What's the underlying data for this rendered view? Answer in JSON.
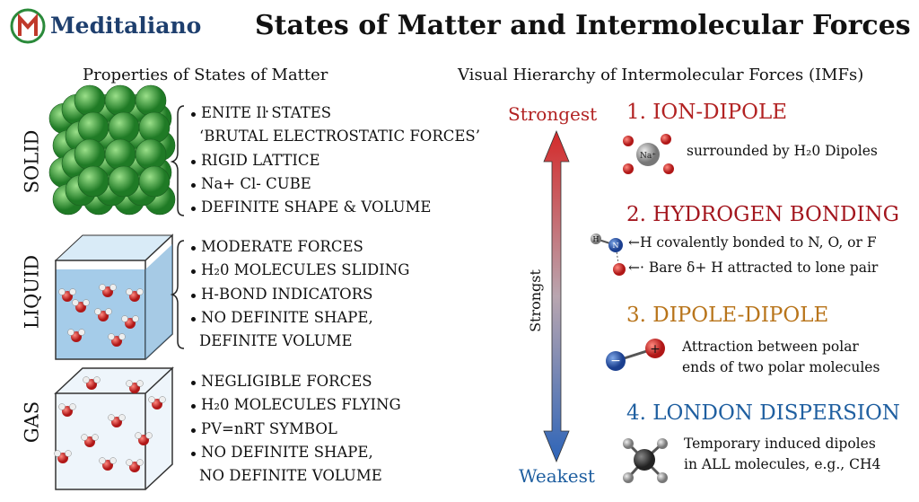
{
  "header": {
    "logo": "Meditaliano",
    "title": "States of Matter and Intermolecular Forces"
  },
  "states": {
    "heading": "Properties of States of Matter",
    "items": [
      {
        "label": "SOLID",
        "bullets": [
          [
            "ENITE Iŀ STATES",
            "‘BRUTAL ELECTROSTATIC FORCES’"
          ],
          [
            "RIGID LATTICE"
          ],
          [
            "Na+ Cl- CUBE"
          ],
          [
            "DEFINITE SHAPE & VOLUME"
          ]
        ]
      },
      {
        "label": "LIQUID",
        "bullets": [
          [
            "MODERATE FORCES"
          ],
          [
            "H₂0 MOLECULES SLIDING"
          ],
          [
            "H-BOND INDICATORS"
          ],
          [
            "NO DEFINITE SHAPE,",
            "DEFINITE VOLUME"
          ]
        ]
      },
      {
        "label": "GAS",
        "bullets": [
          [
            "NEGLIGIBLE FORCES"
          ],
          [
            "H₂0 MOLECULES FLYING"
          ],
          [
            "PV=nRT SYMBOL"
          ],
          [
            "NO DEFINITE SHAPE,",
            "NO DEFINITE VOLUME"
          ]
        ]
      }
    ]
  },
  "forces": {
    "heading": "Visual Hierarchy of Intermolecular Forces (IMFs)",
    "arrow": {
      "top": "Strongest",
      "middle": "Strongst",
      "bottom": "Weakest"
    },
    "items": [
      {
        "title": "1. ION-DIPOLE",
        "description": [
          "surrounded by H₂0 Dipoles"
        ],
        "icon_labels": [
          "Na⁺"
        ]
      },
      {
        "title": "2. HYDROGEN BONDING",
        "description": [
          "←H covalently bonded to N, O, or F",
          "←· Bare δ+ H attracted to lone pair"
        ],
        "icon_labels": [
          "H",
          "N"
        ]
      },
      {
        "title": "3. DIPOLE-DIPOLE",
        "description": [
          "Attraction between polar",
          "ends of two polar molecules"
        ],
        "icon_labels": [
          "−",
          "+"
        ]
      },
      {
        "title": "4. LONDON DISPERSION",
        "description": [
          "Temporary induced dipoles",
          "in ALL molecules, e.g., CH4"
        ],
        "icon_labels": []
      }
    ]
  }
}
